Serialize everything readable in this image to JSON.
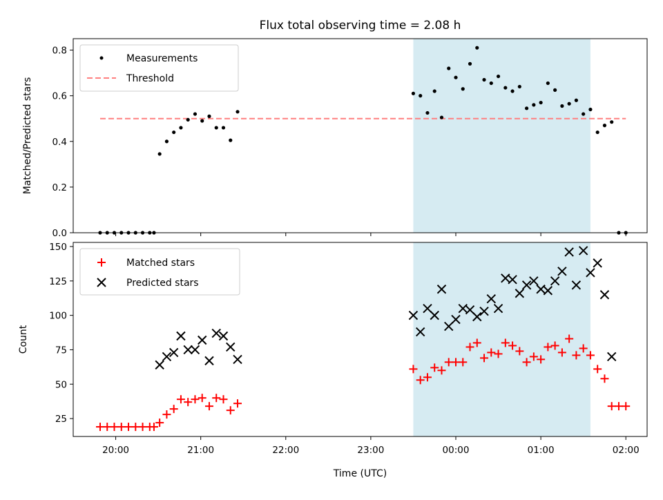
{
  "chart_data": [
    {
      "type": "scatter",
      "title": "Flux total observing time = 2.08 h",
      "xlabel": "",
      "ylabel": "Matched/Predicted stars",
      "xlim": [
        "19:30",
        "02:15"
      ],
      "ylim": [
        0,
        0.85
      ],
      "yticks": [
        0.0,
        0.2,
        0.4,
        0.6,
        0.8
      ],
      "ytick_labels": [
        "0.0",
        "0.2",
        "0.4",
        "0.6",
        "0.8"
      ],
      "grid": false,
      "legend": "top-left",
      "shaded_span": [
        "23:30",
        "01:35"
      ],
      "shade_color": "#add8e6",
      "threshold": 0.5,
      "series": [
        {
          "name": "Measurements",
          "marker": "dot",
          "color": "#000000",
          "x": [
            "19:49",
            "19:54",
            "19:59",
            "20:04",
            "20:09",
            "20:14",
            "20:19",
            "20:24",
            "20:27",
            "20:31",
            "20:36",
            "20:41",
            "20:46",
            "20:51",
            "20:56",
            "21:01",
            "21:06",
            "21:11",
            "21:16",
            "21:21",
            "21:26",
            "23:30",
            "23:35",
            "23:40",
            "23:45",
            "23:50",
            "23:55",
            "00:00",
            "00:05",
            "00:10",
            "00:15",
            "00:20",
            "00:25",
            "00:30",
            "00:35",
            "00:40",
            "00:45",
            "00:50",
            "00:55",
            "01:00",
            "01:05",
            "01:10",
            "01:15",
            "01:20",
            "01:25",
            "01:30",
            "01:35",
            "01:40",
            "01:45",
            "01:50",
            "01:55",
            "02:00"
          ],
          "y": [
            0,
            0,
            0,
            0,
            0,
            0,
            0,
            0,
            0,
            0.345,
            0.4,
            0.44,
            0.46,
            0.495,
            0.52,
            0.49,
            0.51,
            0.46,
            0.46,
            0.405,
            0.53,
            0.61,
            0.6,
            0.525,
            0.62,
            0.505,
            0.72,
            0.68,
            0.63,
            0.74,
            0.81,
            0.67,
            0.655,
            0.685,
            0.635,
            0.62,
            0.64,
            0.545,
            0.56,
            0.57,
            0.655,
            0.625,
            0.555,
            0.565,
            0.58,
            0.52,
            0.54,
            0.44,
            0.47,
            0.485,
            0,
            0
          ]
        },
        {
          "name": "Threshold",
          "style": "dashed",
          "color": "#ff7f7f",
          "x": [
            "19:49",
            "02:00"
          ],
          "y": [
            0.5,
            0.5
          ]
        }
      ]
    },
    {
      "type": "scatter",
      "title": "",
      "xlabel": "Time (UTC)",
      "ylabel": "Count",
      "xlim": [
        "19:30",
        "02:15"
      ],
      "xticks": [
        "20:00",
        "21:00",
        "22:00",
        "23:00",
        "00:00",
        "01:00",
        "02:00"
      ],
      "ylim": [
        12,
        153
      ],
      "yticks": [
        25,
        50,
        75,
        100,
        125,
        150
      ],
      "ytick_labels": [
        "25",
        "50",
        "75",
        "100",
        "125",
        "150"
      ],
      "grid": false,
      "legend": "top-left",
      "shaded_span": [
        "23:30",
        "01:35"
      ],
      "shade_color": "#add8e6",
      "series": [
        {
          "name": "Matched stars",
          "marker": "plus",
          "color": "#ff0000",
          "x": [
            "19:49",
            "19:54",
            "19:59",
            "20:04",
            "20:09",
            "20:14",
            "20:19",
            "20:24",
            "20:27",
            "20:31",
            "20:36",
            "20:41",
            "20:46",
            "20:51",
            "20:56",
            "21:01",
            "21:06",
            "21:11",
            "21:16",
            "21:21",
            "21:26",
            "23:30",
            "23:35",
            "23:40",
            "23:45",
            "23:50",
            "23:55",
            "00:00",
            "00:05",
            "00:10",
            "00:15",
            "00:20",
            "00:25",
            "00:30",
            "00:35",
            "00:40",
            "00:45",
            "00:50",
            "00:55",
            "01:00",
            "01:05",
            "01:10",
            "01:15",
            "01:20",
            "01:25",
            "01:30",
            "01:35",
            "01:40",
            "01:45",
            "01:50",
            "01:55",
            "02:00"
          ],
          "y": [
            19,
            19,
            19,
            19,
            19,
            19,
            19,
            19,
            19,
            22,
            28,
            32,
            39,
            37,
            39,
            40,
            34,
            40,
            39,
            31,
            36,
            61,
            53,
            55,
            62,
            60,
            66,
            66,
            66,
            77,
            80,
            69,
            73,
            72,
            80,
            78,
            74,
            66,
            70,
            68,
            77,
            78,
            73,
            83,
            71,
            76,
            71,
            61,
            54,
            34,
            34,
            34
          ]
        },
        {
          "name": "Predicted stars",
          "marker": "x",
          "color": "#000000",
          "x": [
            "20:31",
            "20:36",
            "20:41",
            "20:46",
            "20:51",
            "20:56",
            "21:01",
            "21:06",
            "21:11",
            "21:16",
            "21:21",
            "21:26",
            "23:30",
            "23:35",
            "23:40",
            "23:45",
            "23:50",
            "23:55",
            "00:00",
            "00:05",
            "00:10",
            "00:15",
            "00:20",
            "00:25",
            "00:30",
            "00:35",
            "00:40",
            "00:45",
            "00:50",
            "00:55",
            "01:00",
            "01:05",
            "01:10",
            "01:15",
            "01:20",
            "01:25",
            "01:30",
            "01:35",
            "01:40",
            "01:45",
            "01:50"
          ],
          "y": [
            64,
            70,
            73,
            85,
            75,
            75,
            82,
            67,
            87,
            85,
            77,
            68,
            100,
            88,
            105,
            100,
            119,
            92,
            97,
            105,
            104,
            99,
            103,
            112,
            105,
            127,
            126,
            116,
            122,
            125,
            119,
            118,
            125,
            132,
            146,
            122,
            147,
            131,
            138,
            115,
            70
          ]
        }
      ]
    }
  ]
}
